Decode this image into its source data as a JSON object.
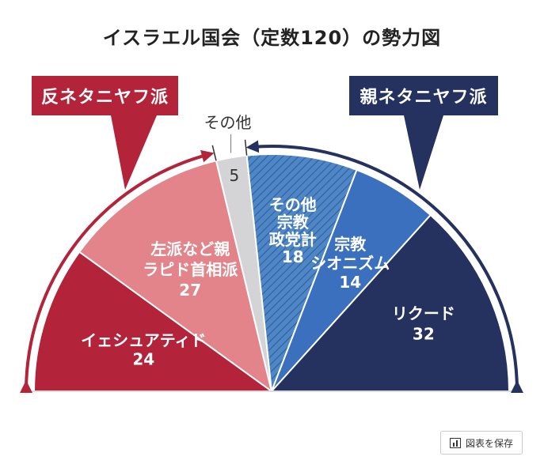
{
  "chart_data": {
    "type": "pie",
    "variant": "semicircle-parliament",
    "title": "イスラエル国会（定数120）の勢力図",
    "total": 120,
    "segments": [
      {
        "name_lines": [
          "イェシュアティド"
        ],
        "value": 24,
        "color": "#b3243a",
        "camp": "anti",
        "text_color": "#ffffff"
      },
      {
        "name_lines": [
          "左派など親",
          "ラピド首相派"
        ],
        "value": 27,
        "color": "#e2848a",
        "camp": "anti",
        "text_color": "#ffffff"
      },
      {
        "name_lines": [],
        "value": 5,
        "color": "#d4d4d6",
        "camp": "other",
        "text_color": "#333333"
      },
      {
        "name_lines": [
          "その他",
          "宗教",
          "政党計"
        ],
        "value": 18,
        "color": "#4e86c6",
        "camp": "pro",
        "text_color": "#ffffff",
        "hatched": true
      },
      {
        "name_lines": [
          "宗教",
          "シオニズム"
        ],
        "value": 14,
        "color": "#3a70bd",
        "camp": "pro",
        "text_color": "#ffffff"
      },
      {
        "name_lines": [
          "リクード"
        ],
        "value": 32,
        "color": "#25315f",
        "camp": "pro",
        "text_color": "#ffffff"
      }
    ],
    "other_label": "その他",
    "camps": {
      "anti": {
        "label": "反ネタニヤフ派",
        "color": "#b3243a"
      },
      "pro": {
        "label": "親ネタニヤフ派",
        "color": "#25315f"
      }
    }
  },
  "save_button": {
    "label": "図表を保存",
    "icon": "bar-chart-icon"
  }
}
